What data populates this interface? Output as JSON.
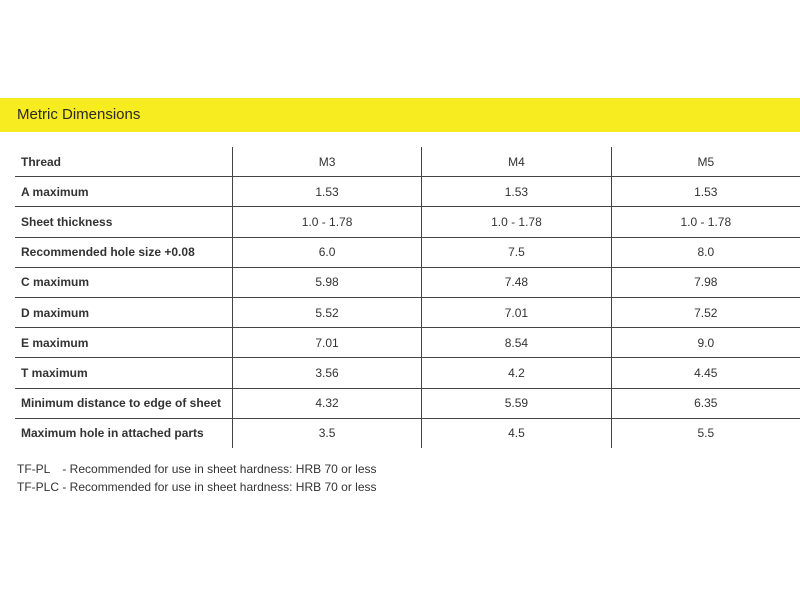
{
  "title": "Metric Dimensions",
  "accent_color": "#f7ec1f",
  "table": {
    "headers": [
      "Thread",
      "M3",
      "M4",
      "M5"
    ],
    "rows": [
      [
        "A maximum",
        "1.53",
        "1.53",
        "1.53"
      ],
      [
        "Sheet thickness",
        "1.0 - 1.78",
        "1.0 - 1.78",
        "1.0 - 1.78"
      ],
      [
        "Recommended hole size +0.08",
        "6.0",
        "7.5",
        "8.0"
      ],
      [
        "C maximum",
        "5.98",
        "7.48",
        "7.98"
      ],
      [
        "D maximum",
        "5.52",
        "7.01",
        "7.52"
      ],
      [
        "E maximum",
        "7.01",
        "8.54",
        "9.0"
      ],
      [
        "T maximum",
        "3.56",
        "4.2",
        "4.45"
      ],
      [
        "Minimum distance to edge of sheet",
        "4.32",
        "5.59",
        "6.35"
      ],
      [
        "Maximum hole in attached parts",
        "3.5",
        "4.5",
        "5.5"
      ]
    ]
  },
  "notes": [
    {
      "code": "TF-PL",
      "text": "- Recommended for use in sheet hardness: HRB 70 or less"
    },
    {
      "code": "TF-PLC",
      "text": "- Recommended for use in sheet hardness: HRB 70 or less"
    }
  ]
}
